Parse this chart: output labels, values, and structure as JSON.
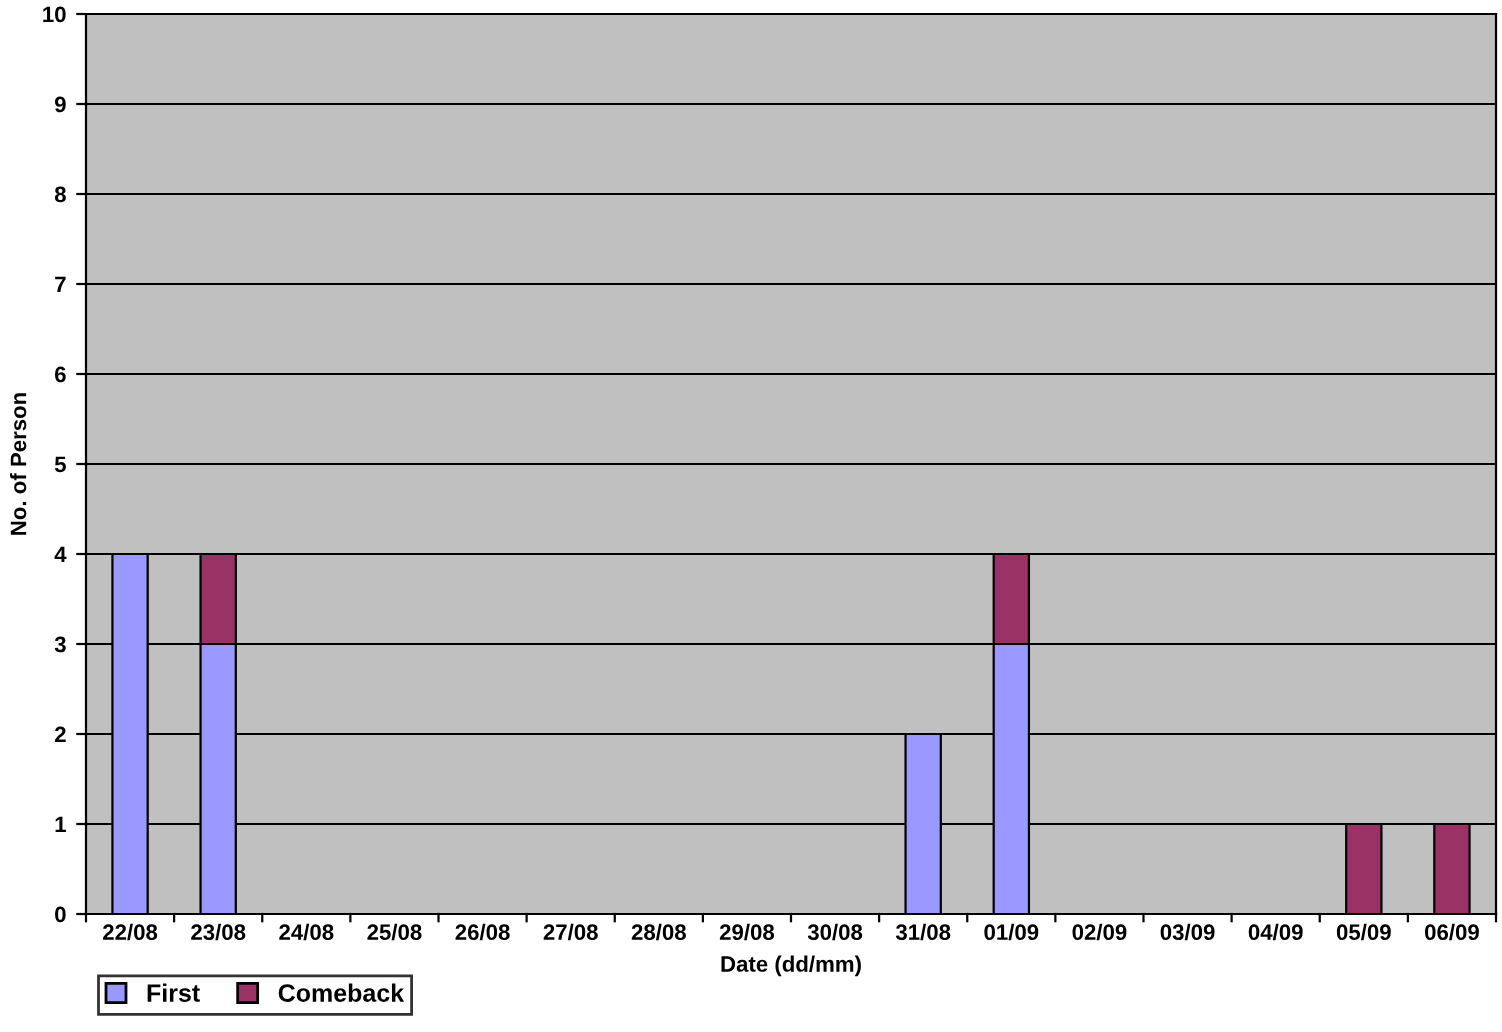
{
  "chart_data": {
    "type": "bar",
    "stacked": true,
    "xlabel": "Date (dd/mm)",
    "ylabel": "No. of Person",
    "categories": [
      "22/08",
      "23/08",
      "24/08",
      "25/08",
      "26/08",
      "27/08",
      "28/08",
      "29/08",
      "30/08",
      "31/08",
      "01/09",
      "02/09",
      "03/09",
      "04/09",
      "05/09",
      "06/09"
    ],
    "series": [
      {
        "name": "First",
        "color": "#9999ff",
        "values": [
          4,
          3,
          null,
          null,
          null,
          null,
          null,
          null,
          null,
          2,
          3,
          null,
          null,
          null,
          0,
          0
        ]
      },
      {
        "name": "Comeback",
        "color": "#993366",
        "values": [
          null,
          1,
          null,
          null,
          null,
          null,
          null,
          null,
          null,
          null,
          1,
          null,
          null,
          null,
          1,
          1
        ]
      }
    ],
    "ylim": [
      0,
      10
    ],
    "yticks": [
      0,
      1,
      2,
      3,
      4,
      5,
      6,
      7,
      8,
      9,
      10
    ],
    "grid": "y",
    "legend": "bottom left"
  }
}
